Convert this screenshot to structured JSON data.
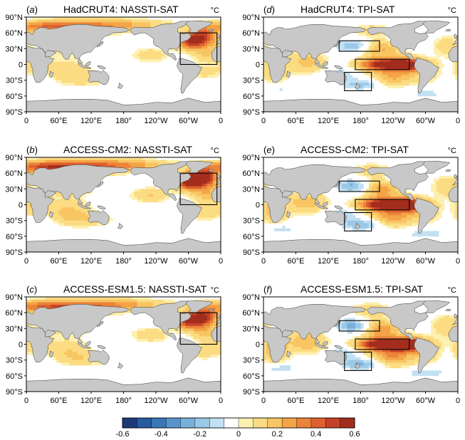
{
  "panels": [
    {
      "letter": "a",
      "title": "HadCRUT4: NASSTI-SAT",
      "unit": "°C",
      "type": "nassti",
      "strength": 1.0,
      "boxes": "atl"
    },
    {
      "letter": "d",
      "title": "HadCRUT4: TPI-SAT",
      "unit": "°C",
      "type": "tpi",
      "strength": 1.0,
      "boxes": "pac"
    },
    {
      "letter": "b",
      "title": "ACCESS-CM2: NASSTI-SAT",
      "unit": "°C",
      "type": "nassti",
      "strength": 1.3,
      "boxes": "atl"
    },
    {
      "letter": "e",
      "title": "ACCESS-CM2: TPI-SAT",
      "unit": "°C",
      "type": "tpi",
      "strength": 1.15,
      "boxes": "pac"
    },
    {
      "letter": "c",
      "title": "ACCESS-ESM1.5: NASSTI-SAT",
      "unit": "°C",
      "type": "nassti",
      "strength": 1.1,
      "boxes": "atl"
    },
    {
      "letter": "f",
      "title": "ACCESS-ESM1.5: TPI-SAT",
      "unit": "°C",
      "type": "tpi",
      "strength": 1.25,
      "boxes": "pac"
    }
  ],
  "axes": {
    "lat_labels": [
      "90°N",
      "60°N",
      "30°N",
      "0",
      "30°S",
      "60°S",
      "90°S"
    ],
    "lon_labels": [
      "0",
      "60°E",
      "120°E",
      "180°",
      "120°W",
      "60°W",
      "0"
    ]
  },
  "colorbar": {
    "tick_labels": [
      "-0.6",
      "-0.4",
      "-0.2",
      "0",
      "0.2",
      "0.4",
      "0.6"
    ],
    "colors": [
      "#1d3a78",
      "#2a5a9e",
      "#3a77b8",
      "#5595cc",
      "#78b0da",
      "#9ac8e6",
      "#c2e0f2",
      "#ffffff",
      "#fdf0b0",
      "#fbdc82",
      "#f8c563",
      "#f4a446",
      "#ec833a",
      "#dd602e",
      "#c54125",
      "#a32d1d"
    ]
  },
  "colors": {
    "land": "#c8c8c8",
    "ocean": "#ffffff"
  }
}
